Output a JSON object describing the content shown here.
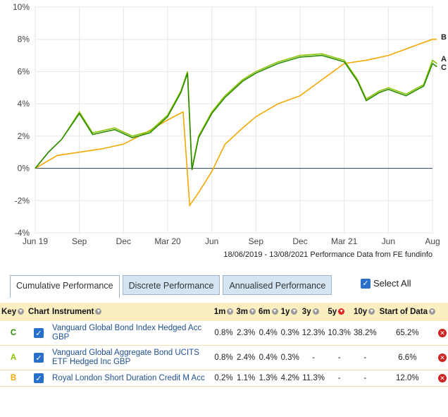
{
  "chart_data": {
    "type": "line",
    "x_labels": [
      "Jun 19",
      "Sep",
      "Dec",
      "Mar 20",
      "Jun",
      "Sep",
      "Dec",
      "Mar 21",
      "Jun",
      "Aug"
    ],
    "y_ticks": [
      "10%",
      "8%",
      "6%",
      "4%",
      "2%",
      "0%",
      "-2%",
      "-4%"
    ],
    "ylim": [
      -4,
      10
    ],
    "grid": true,
    "series": [
      {
        "name": "A",
        "color": "#8bc400",
        "points": [
          [
            0,
            0
          ],
          [
            0.3,
            1
          ],
          [
            0.6,
            1.8
          ],
          [
            1,
            3.5
          ],
          [
            1.3,
            2.2
          ],
          [
            1.8,
            2.5
          ],
          [
            2.2,
            2
          ],
          [
            2.6,
            2.3
          ],
          [
            3,
            3.3
          ],
          [
            3.3,
            4.8
          ],
          [
            3.45,
            6
          ],
          [
            3.55,
            0
          ],
          [
            3.7,
            2
          ],
          [
            4,
            3.5
          ],
          [
            4.3,
            4.5
          ],
          [
            4.7,
            5.5
          ],
          [
            5,
            6
          ],
          [
            5.5,
            6.6
          ],
          [
            6,
            7
          ],
          [
            6.5,
            7.1
          ],
          [
            7,
            6.7
          ],
          [
            7.3,
            5.5
          ],
          [
            7.5,
            4.3
          ],
          [
            7.8,
            4.8
          ],
          [
            8,
            5
          ],
          [
            8.4,
            4.6
          ],
          [
            8.8,
            5.2
          ],
          [
            9,
            6.7
          ],
          [
            9.1,
            6.5
          ]
        ]
      },
      {
        "name": "B",
        "color": "#f2a800",
        "points": [
          [
            0,
            0
          ],
          [
            0.5,
            0.8
          ],
          [
            1,
            1
          ],
          [
            1.5,
            1.2
          ],
          [
            2,
            1.5
          ],
          [
            2.5,
            2.2
          ],
          [
            3,
            3
          ],
          [
            3.35,
            3.5
          ],
          [
            3.5,
            -2.3
          ],
          [
            3.7,
            -1.5
          ],
          [
            4,
            -0.2
          ],
          [
            4.3,
            1.5
          ],
          [
            4.7,
            2.5
          ],
          [
            5,
            3.2
          ],
          [
            5.5,
            4
          ],
          [
            6,
            4.5
          ],
          [
            6.5,
            5.5
          ],
          [
            7,
            6.5
          ],
          [
            7.5,
            6.7
          ],
          [
            8,
            7
          ],
          [
            8.5,
            7.5
          ],
          [
            9,
            8
          ],
          [
            9.1,
            8
          ]
        ]
      },
      {
        "name": "C",
        "color": "#2a8a00",
        "points": [
          [
            0,
            0
          ],
          [
            0.3,
            1
          ],
          [
            0.6,
            1.8
          ],
          [
            1,
            3.4
          ],
          [
            1.3,
            2.1
          ],
          [
            1.8,
            2.4
          ],
          [
            2.2,
            1.9
          ],
          [
            2.6,
            2.2
          ],
          [
            3,
            3.2
          ],
          [
            3.3,
            4.7
          ],
          [
            3.45,
            5.9
          ],
          [
            3.55,
            -0.1
          ],
          [
            3.7,
            1.9
          ],
          [
            4,
            3.4
          ],
          [
            4.3,
            4.4
          ],
          [
            4.7,
            5.4
          ],
          [
            5,
            5.9
          ],
          [
            5.5,
            6.5
          ],
          [
            6,
            6.9
          ],
          [
            6.5,
            7
          ],
          [
            7,
            6.6
          ],
          [
            7.3,
            5.4
          ],
          [
            7.5,
            4.2
          ],
          [
            7.8,
            4.7
          ],
          [
            8,
            4.9
          ],
          [
            8.4,
            4.5
          ],
          [
            8.8,
            5.1
          ],
          [
            9,
            6.5
          ],
          [
            9.1,
            6.3
          ]
        ]
      }
    ],
    "source_text": "18/06/2019 - 13/08/2021 Performance Data from FE fundinfo"
  },
  "tabs": {
    "cumulative": "Cumulative Performance",
    "discrete": "Discrete Performance",
    "annualised": "Annualised Performance"
  },
  "select_all": "Select All",
  "table": {
    "headers": [
      "Key",
      "Chart",
      "Instrument",
      "1m",
      "3m",
      "6m",
      "1y",
      "3y",
      "5y",
      "10y",
      "Start of Data"
    ],
    "rows": [
      {
        "key": "C",
        "key_color": "#2a8a00",
        "instrument": "Vanguard Global Bond Index Hedged Acc GBP",
        "m1": "0.8%",
        "m3": "2.3%",
        "m6": "0.4%",
        "y1": "0.3%",
        "y3": "12.3%",
        "y5": "10.3%",
        "y10": "38.2%",
        "start": "65.2%"
      },
      {
        "key": "A",
        "key_color": "#8bc400",
        "instrument": "Vanguard Global Aggregate Bond UCITS ETF Hedged Inc GBP",
        "m1": "0.8%",
        "m3": "2.4%",
        "m6": "0.4%",
        "y1": "0.3%",
        "y3": "-",
        "y5": "-",
        "y10": "-",
        "start": "6.6%"
      },
      {
        "key": "B",
        "key_color": "#f2a800",
        "instrument": "Royal London Short Duration Credit M Acc",
        "m1": "0.2%",
        "m3": "1.1%",
        "m6": "1.3%",
        "y1": "4.2%",
        "y3": "11.3%",
        "y5": "-",
        "y10": "-",
        "start": "12.0%"
      }
    ]
  }
}
